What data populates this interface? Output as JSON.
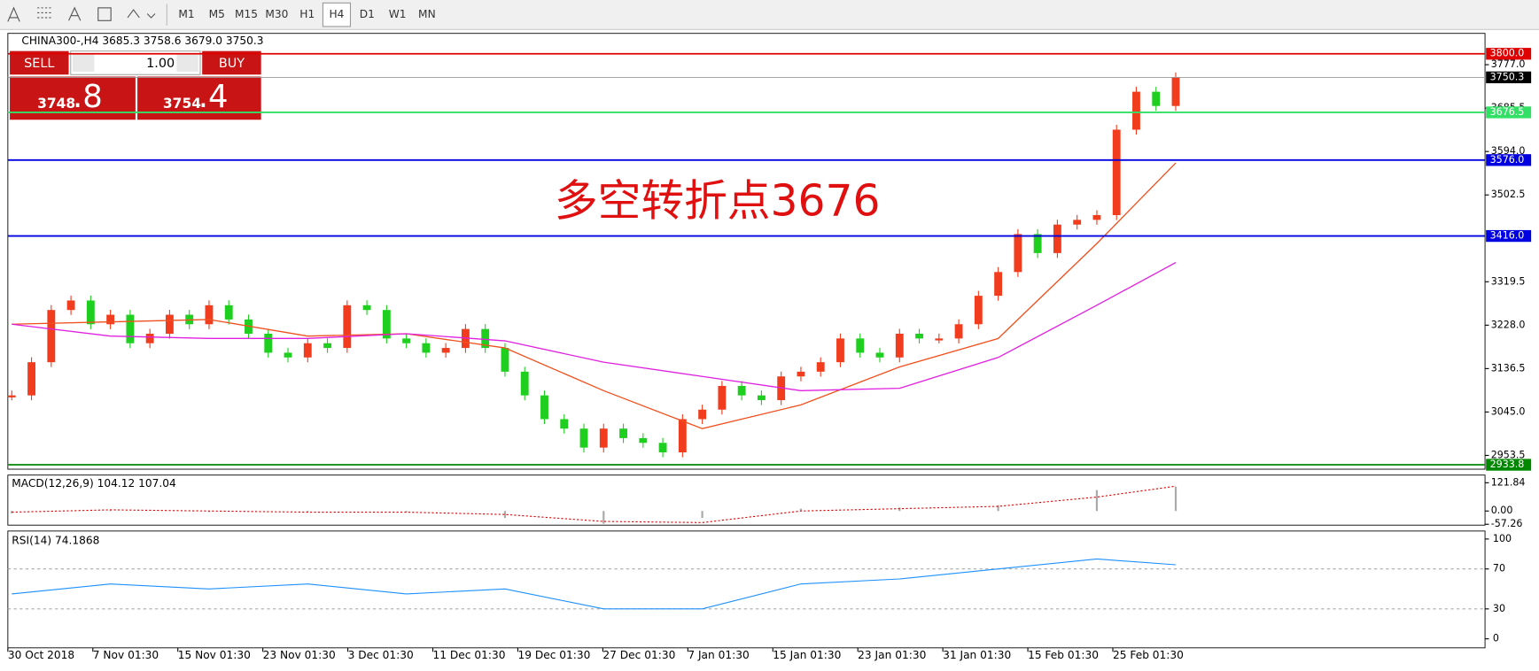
{
  "toolbar": {
    "timeframes": [
      "M1",
      "M5",
      "M15",
      "M30",
      "H1",
      "H4",
      "D1",
      "W1",
      "MN"
    ],
    "selected": "H4"
  },
  "symbol_header": "CHINA300-,H4  3685.3 3758.6 3679.0 3750.3",
  "trade_panel": {
    "sell": "SELL",
    "buy": "BUY",
    "lot": "1.00",
    "bid_main": "3748",
    "bid_big": ".8",
    "ask_main": "3754",
    "ask_big": ".4"
  },
  "chart_data": {
    "type": "candlestick",
    "annotation": "多空转折点3676",
    "close": [
      3080,
      3150,
      3260,
      3280,
      3230,
      3250,
      3190,
      3210,
      3250,
      3230,
      3270,
      3240,
      3210,
      3170,
      3160,
      3190,
      3180,
      3270,
      3260,
      3200,
      3190,
      3170,
      3180,
      3220,
      3180,
      3130,
      3080,
      3030,
      3010,
      2970,
      3010,
      2990,
      2980,
      2960,
      3030,
      3050,
      3100,
      3080,
      3070,
      3120,
      3130,
      3150,
      3200,
      3170,
      3160,
      3210,
      3200,
      3200,
      3230,
      3290,
      3340,
      3420,
      3380,
      3440,
      3450,
      3460,
      3640,
      3720,
      3690,
      3750.3
    ],
    "up_color": "#f23c1e",
    "down_color": "#1fcf1f",
    "ylim": [
      2924.5,
      3843
    ],
    "yticks": [
      {
        "value": 3777,
        "label": "3777.0"
      },
      {
        "value": 3685.5,
        "label": "3685.5"
      },
      {
        "value": 3594,
        "label": "3594.0"
      },
      {
        "value": 3502.5,
        "label": "3502.5"
      },
      {
        "value": 3319.5,
        "label": "3319.5"
      },
      {
        "value": 3228,
        "label": "3228.0"
      },
      {
        "value": 3136.5,
        "label": "3136.5"
      },
      {
        "value": 3045,
        "label": "3045.0"
      },
      {
        "value": 2953.5,
        "label": "2953.5"
      }
    ],
    "levels": [
      {
        "value": 3800,
        "label": "3800.0",
        "color": "#e00000"
      },
      {
        "value": 3750.3,
        "label": "3750.3",
        "color": "#000000"
      },
      {
        "value": 3676.5,
        "label": "3676.5",
        "color": "#33e066"
      },
      {
        "value": 3576,
        "label": "3576.0",
        "color": "#0000e0"
      },
      {
        "value": 3416,
        "label": "3416.0",
        "color": "#0000e0"
      },
      {
        "value": 2933.8,
        "label": "2933.8",
        "color": "#008800"
      }
    ],
    "ma_x": [
      0,
      5,
      10,
      15,
      20,
      25,
      30,
      35,
      40,
      45,
      50,
      55,
      59
    ],
    "ma": [
      {
        "color": "#f0501e",
        "values": [
          3230,
          3235,
          3240,
          3205,
          3210,
          3180,
          3090,
          3010,
          3060,
          3140,
          3200,
          3400,
          3570
        ]
      },
      {
        "color": "#e020e0",
        "values": [
          3230,
          3205,
          3200,
          3200,
          3210,
          3195,
          3150,
          3120,
          3090,
          3095,
          3160,
          3270,
          3360
        ]
      }
    ],
    "time_labels": [
      "30 Oct 2018",
      "7 Nov 01:30",
      "15 Nov 01:30",
      "23 Nov 01:30",
      "3 Dec 01:30",
      "11 Dec 01:30",
      "19 Dec 01:30",
      "27 Dec 01:30",
      "7 Jan 01:30",
      "15 Jan 01:30",
      "23 Jan 01:30",
      "31 Jan 01:30",
      "15 Feb 01:30",
      "25 Feb 01:30"
    ],
    "macd": {
      "label": "MACD(12,26,9) 104.12 107.04",
      "ylim": [
        -61,
        155
      ],
      "yticks": [
        121.84,
        {
          "value": 0,
          "label": "0.00"
        },
        -57.26
      ],
      "histogram": [
        -10,
        5,
        0,
        -5,
        -5,
        -30,
        -55,
        -30,
        10,
        15,
        25,
        90,
        104.12
      ],
      "signal": [
        -5,
        5,
        0,
        -5,
        -5,
        -15,
        -45,
        -50,
        0,
        10,
        20,
        60,
        107.04
      ]
    },
    "rsi": {
      "label": "RSI(14) 74.1868",
      "ylim": [
        -9,
        108
      ],
      "yticks": [
        100,
        70,
        30,
        0
      ],
      "levels": [
        70,
        30
      ],
      "color": "#1e90ff",
      "values": [
        45,
        55,
        50,
        55,
        45,
        50,
        30,
        30,
        55,
        60,
        70,
        80,
        74.1868
      ]
    }
  }
}
